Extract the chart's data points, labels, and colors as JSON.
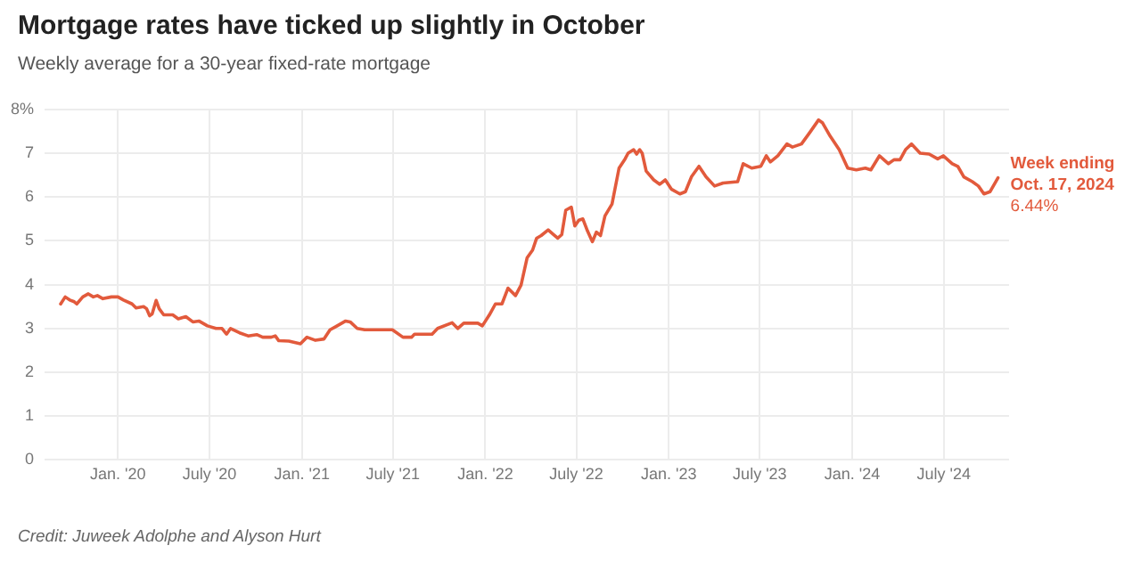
{
  "chart_data": {
    "type": "line",
    "title": "Mortgage rates have ticked up slightly in October",
    "subtitle": "Weekly average for a 30-year fixed-rate mortgage",
    "x": [
      "2019-09-09",
      "2019-09-18",
      "2019-09-27",
      "2019-10-06",
      "2019-10-11",
      "2019-10-23",
      "2019-11-03",
      "2019-11-13",
      "2019-11-21",
      "2019-12-02",
      "2019-12-19",
      "2020-01-01",
      "2020-01-12",
      "2020-01-29",
      "2020-02-06",
      "2020-02-21",
      "2020-02-27",
      "2020-03-04",
      "2020-03-09",
      "2020-03-17",
      "2020-03-23",
      "2020-04-01",
      "2020-04-19",
      "2020-04-30",
      "2020-05-15",
      "2020-05-29",
      "2020-06-10",
      "2020-06-27",
      "2020-07-14",
      "2020-07-26",
      "2020-08-04",
      "2020-08-12",
      "2020-08-30",
      "2020-09-16",
      "2020-10-03",
      "2020-10-15",
      "2020-11-01",
      "2020-11-09",
      "2020-11-16",
      "2020-12-06",
      "2020-12-29",
      "2021-01-11",
      "2021-01-28",
      "2021-02-14",
      "2021-02-26",
      "2021-03-09",
      "2021-03-29",
      "2021-04-07",
      "2021-04-21",
      "2021-05-06",
      "2021-05-25",
      "2021-06-17",
      "2021-06-30",
      "2021-07-21",
      "2021-08-07",
      "2021-08-13",
      "2021-09-17",
      "2021-09-28",
      "2021-10-27",
      "2021-11-07",
      "2021-11-19",
      "2021-12-17",
      "2021-12-26",
      "2022-01-09",
      "2022-01-21",
      "2022-02-03",
      "2022-02-15",
      "2022-03-02",
      "2022-03-13",
      "2022-03-25",
      "2022-04-05",
      "2022-04-13",
      "2022-04-22",
      "2022-05-06",
      "2022-05-15",
      "2022-05-25",
      "2022-06-02",
      "2022-06-10",
      "2022-06-21",
      "2022-06-28",
      "2022-07-06",
      "2022-07-14",
      "2022-07-23",
      "2022-08-02",
      "2022-08-10",
      "2022-08-18",
      "2022-08-27",
      "2022-09-10",
      "2022-09-24",
      "2022-10-06",
      "2022-10-12",
      "2022-10-23",
      "2022-10-29",
      "2022-11-04",
      "2022-11-09",
      "2022-11-17",
      "2022-12-02",
      "2022-12-14",
      "2022-12-25",
      "2023-01-06",
      "2023-01-23",
      "2023-02-03",
      "2023-02-15",
      "2023-03-02",
      "2023-03-16",
      "2023-04-02",
      "2023-04-19",
      "2023-05-18",
      "2023-05-29",
      "2023-06-15",
      "2023-07-03",
      "2023-07-14",
      "2023-07-22",
      "2023-08-06",
      "2023-08-24",
      "2023-09-04",
      "2023-09-22",
      "2023-10-09",
      "2023-10-26",
      "2023-11-03",
      "2023-11-18",
      "2023-12-06",
      "2023-12-23",
      "2024-01-09",
      "2024-01-27",
      "2024-02-07",
      "2024-02-24",
      "2024-03-13",
      "2024-03-24",
      "2024-04-05",
      "2024-04-16",
      "2024-04-28",
      "2024-05-15",
      "2024-06-02",
      "2024-06-19",
      "2024-06-30",
      "2024-07-18",
      "2024-07-29",
      "2024-08-10",
      "2024-08-27",
      "2024-09-08",
      "2024-09-19",
      "2024-10-01",
      "2024-10-17"
    ],
    "series": [
      {
        "color": "#e25a3c",
        "values": [
          3.56,
          3.72,
          3.65,
          3.61,
          3.56,
          3.72,
          3.79,
          3.72,
          3.75,
          3.68,
          3.72,
          3.72,
          3.65,
          3.56,
          3.47,
          3.5,
          3.45,
          3.29,
          3.33,
          3.64,
          3.45,
          3.31,
          3.31,
          3.22,
          3.27,
          3.15,
          3.17,
          3.06,
          3.0,
          3.0,
          2.87,
          3.0,
          2.9,
          2.83,
          2.86,
          2.8,
          2.8,
          2.83,
          2.72,
          2.71,
          2.65,
          2.8,
          2.73,
          2.76,
          2.97,
          3.04,
          3.17,
          3.15,
          3.0,
          2.97,
          2.97,
          2.97,
          2.97,
          2.8,
          2.8,
          2.87,
          2.87,
          3.0,
          3.13,
          3.0,
          3.12,
          3.12,
          3.06,
          3.31,
          3.56,
          3.56,
          3.92,
          3.75,
          3.99,
          4.61,
          4.79,
          5.06,
          5.12,
          5.25,
          5.16,
          5.06,
          5.14,
          5.7,
          5.77,
          5.34,
          5.47,
          5.5,
          5.23,
          4.98,
          5.2,
          5.12,
          5.57,
          5.84,
          6.66,
          6.87,
          7.0,
          7.08,
          6.98,
          7.08,
          7.0,
          6.59,
          6.39,
          6.29,
          6.39,
          6.18,
          6.07,
          6.12,
          6.46,
          6.7,
          6.46,
          6.25,
          6.32,
          6.35,
          6.76,
          6.66,
          6.7,
          6.94,
          6.8,
          6.94,
          7.21,
          7.14,
          7.21,
          7.48,
          7.76,
          7.69,
          7.39,
          7.08,
          6.66,
          6.62,
          6.66,
          6.62,
          6.94,
          6.76,
          6.85,
          6.85,
          7.08,
          7.21,
          7.0,
          6.98,
          6.87,
          6.94,
          6.76,
          6.7,
          6.46,
          6.35,
          6.25,
          6.07,
          6.12,
          6.44
        ]
      }
    ],
    "xlim": [
      "2019-08-08",
      "2024-11-08"
    ],
    "xticks": [
      {
        "value": "2020-01-01",
        "label": "Jan. '20"
      },
      {
        "value": "2020-07-01",
        "label": "July '20"
      },
      {
        "value": "2021-01-01",
        "label": "Jan. '21"
      },
      {
        "value": "2021-07-01",
        "label": "July '21"
      },
      {
        "value": "2022-01-01",
        "label": "Jan. '22"
      },
      {
        "value": "2022-07-01",
        "label": "July '22"
      },
      {
        "value": "2023-01-01",
        "label": "Jan. '23"
      },
      {
        "value": "2023-07-01",
        "label": "July '23"
      },
      {
        "value": "2024-01-01",
        "label": "Jan. '24"
      },
      {
        "value": "2024-07-01",
        "label": "July '24"
      }
    ],
    "ylim": [
      0,
      8
    ],
    "yticks": [
      0,
      1,
      2,
      3,
      4,
      5,
      6,
      7,
      {
        "value": 8,
        "label": "8%"
      }
    ],
    "grid": true,
    "marker": "none",
    "annotations": [
      {
        "text": "Week ending\nOct. 17, 2024",
        "x": "2024-10-17",
        "y": 6.44
      },
      {
        "text": "6.44%",
        "x": "2024-10-17",
        "y": 6.44
      },
      "Credit: Juweek Adolphe and Alyson Hurt"
    ]
  }
}
